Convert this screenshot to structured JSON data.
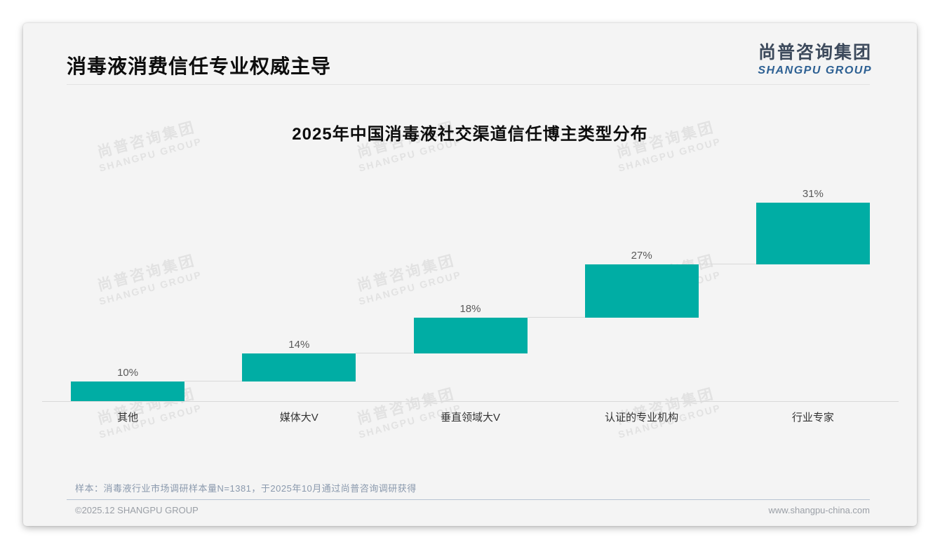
{
  "header": {
    "title": "消毒液消费信任专业权威主导",
    "logo_zh": "尚普咨询集团",
    "logo_en": "SHANGPU GROUP"
  },
  "chart_data": {
    "type": "bar",
    "subtype": "waterfall-steps",
    "title": "2025年中国消毒液社交渠道信任博主类型分布",
    "categories": [
      "其他",
      "媒体大V",
      "垂直领域大V",
      "认证的专业机构",
      "行业专家"
    ],
    "values": [
      10,
      14,
      18,
      27,
      31
    ],
    "value_labels": [
      "10%",
      "14%",
      "18%",
      "27%",
      "31%"
    ],
    "unit": "%",
    "total": 100,
    "ylim": [
      0,
      100
    ],
    "legend": "none",
    "grid": "off",
    "bar_color": "#00ADA4",
    "value_label_color": "#595959",
    "axis_color": "#d9d9d9"
  },
  "watermark": {
    "zh": "尚普咨询集团",
    "en": "SHANGPU GROUP"
  },
  "footer": {
    "sample_note": "样本：消毒液行业市场调研样本量N=1381，于2025年10月通过尚普咨询调研获得",
    "copyright": "©2025.12 SHANGPU GROUP",
    "website": "www.shangpu-china.com"
  }
}
